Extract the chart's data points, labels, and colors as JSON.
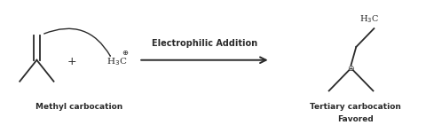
{
  "fig_width": 4.8,
  "fig_height": 1.41,
  "dpi": 100,
  "bg_color": "#ffffff",
  "line_color": "#2a2a2a",
  "text_color": "#2a2a2a",
  "label_methyl": "Methyl carbocation",
  "label_tertiary_1": "Tertiary carbocation",
  "label_tertiary_2": "Favored",
  "label_reaction": "Electrophilic Addition",
  "plus_sign": "+",
  "line_width": 1.3,
  "font_size_label": 6.5,
  "font_size_reaction": 7.0,
  "font_size_chem": 7.5
}
